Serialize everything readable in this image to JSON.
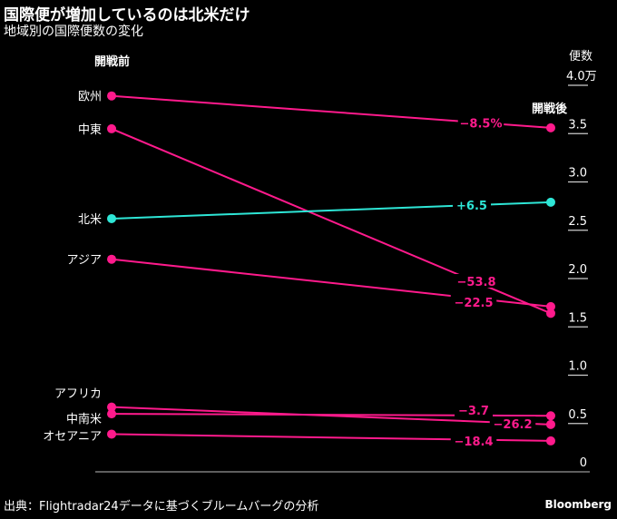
{
  "title": "国際便が増加しているのは北米だけ",
  "subtitle": "地域別の国際便数の変化",
  "source": "出典：Flightradar24データに基づくブルームバーグの分析",
  "brand": "Bloomberg",
  "chart_data": {
    "type": "slope",
    "title": "国際便が増加しているのは北米だけ",
    "left_label": "開戦前",
    "right_label": "開戦後",
    "ylabel": "便数",
    "ylim": [
      0,
      4.0
    ],
    "yticks": [
      "0",
      "0.5",
      "1.0",
      "1.5",
      "2.0",
      "2.5",
      "3.0",
      "3.5",
      "4.0万"
    ],
    "unit": "万",
    "series": [
      {
        "name": "欧州",
        "before": 3.89,
        "after": 3.56,
        "change": "−8.5%",
        "color": "#ff1a8c"
      },
      {
        "name": "中東",
        "before": 3.55,
        "after": 1.64,
        "change": "−53.8",
        "color": "#ff1a8c"
      },
      {
        "name": "北米",
        "before": 2.62,
        "after": 2.79,
        "change": "+6.5",
        "color": "#2ee6d6"
      },
      {
        "name": "アジア",
        "before": 2.2,
        "after": 1.71,
        "change": "−22.5",
        "color": "#ff1a8c"
      },
      {
        "name": "アフリカ",
        "before": 0.6,
        "after": 0.58,
        "change": "−3.7",
        "color": "#ff1a8c"
      },
      {
        "name": "中南米",
        "before": 0.67,
        "after": 0.49,
        "change": "−26.2",
        "color": "#ff1a8c"
      },
      {
        "name": "オセアニア",
        "before": 0.39,
        "after": 0.32,
        "change": "−18.4",
        "color": "#ff1a8c"
      }
    ]
  }
}
